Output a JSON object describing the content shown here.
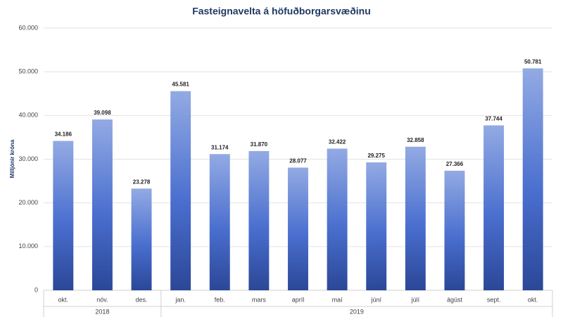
{
  "chart_data": {
    "type": "bar",
    "title": "Fasteignavelta á höfuðborgarsvæðinu",
    "y_label": "Milljónir króna",
    "categories": [
      "okt.",
      "nóv.",
      "des.",
      "jan.",
      "feb.",
      "mars",
      "apríl",
      "maí",
      "júní",
      "júlí",
      "ágúst",
      "sept.",
      "okt."
    ],
    "values": [
      34186,
      39098,
      23278,
      45581,
      31174,
      31870,
      28077,
      32422,
      29275,
      32858,
      27366,
      37744,
      50781
    ],
    "value_labels": [
      "34.186",
      "39.098",
      "23.278",
      "45.581",
      "31.174",
      "31.870",
      "28.077",
      "32.422",
      "29.275",
      "32.858",
      "27.366",
      "37.744",
      "50.781"
    ],
    "groups": [
      {
        "name": "2018",
        "span": 3
      },
      {
        "name": "2019",
        "span": 10
      }
    ],
    "color_top": "#93aae3",
    "color_bottom": "#2b4797",
    "ylim": [
      0,
      60000
    ],
    "yticks": [
      0,
      {
        "value": 10000,
        "label": "10.000"
      },
      {
        "value": 20000,
        "label": "20.000"
      },
      {
        "value": 30000,
        "label": "30.000"
      },
      {
        "value": 40000,
        "label": "40.000"
      },
      {
        "value": 50000,
        "label": "50.000"
      },
      {
        "value": 60000,
        "label": "60.000"
      }
    ],
    "grid": true
  }
}
